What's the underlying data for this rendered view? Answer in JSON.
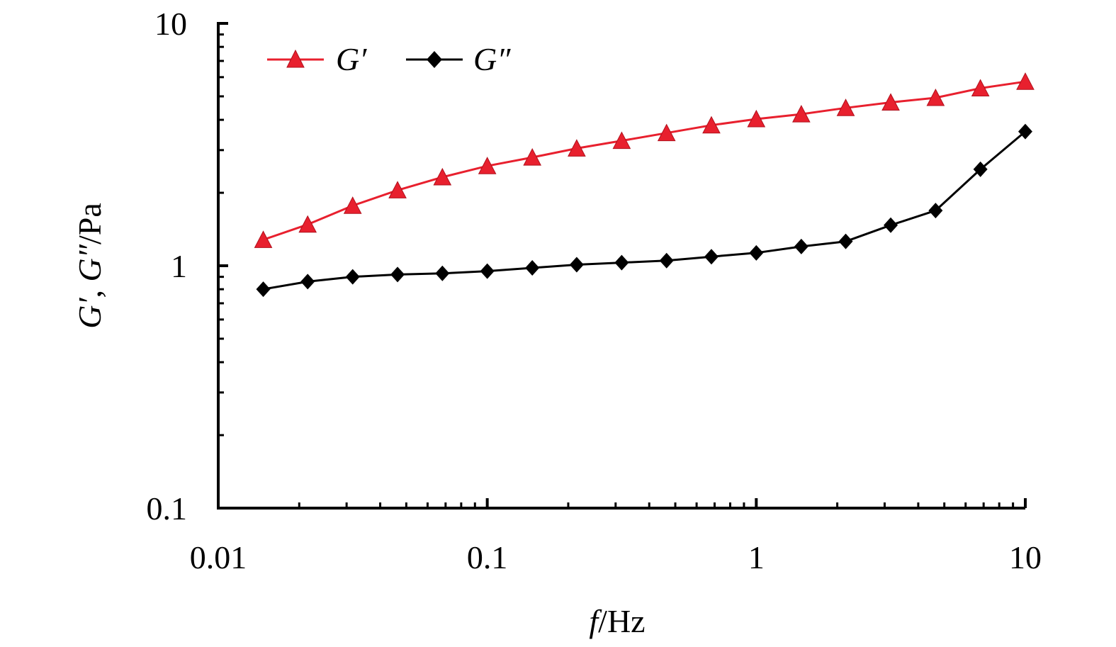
{
  "chart_data": {
    "type": "line",
    "xlabel_parts": {
      "var": "f",
      "unit": "/Hz"
    },
    "ylabel_parts": {
      "g1": "G′",
      "sep": ", ",
      "g2": "G″",
      "unit": "/Pa"
    },
    "x_scale": "log",
    "y_scale": "log",
    "xlim": [
      0.01,
      10
    ],
    "ylim": [
      0.1,
      10
    ],
    "x_ticks": [
      "0.01",
      "0.1",
      "1",
      "10"
    ],
    "y_ticks": [
      "0.1",
      "1",
      "10"
    ],
    "grid": false,
    "legend_position": "top-left",
    "x": [
      0.0147,
      0.0215,
      0.0316,
      0.0464,
      0.0681,
      0.1,
      0.147,
      0.215,
      0.316,
      0.464,
      0.681,
      1.0,
      1.47,
      2.15,
      3.16,
      4.64,
      6.81,
      10.0
    ],
    "series": [
      {
        "name": "G′",
        "color": "#e8202e",
        "marker": "triangle",
        "values": [
          1.28,
          1.48,
          1.77,
          2.05,
          2.32,
          2.58,
          2.8,
          3.05,
          3.28,
          3.53,
          3.8,
          4.03,
          4.22,
          4.48,
          4.72,
          4.93,
          5.4,
          5.75
        ]
      },
      {
        "name": "G″",
        "color": "#000000",
        "marker": "diamond",
        "values": [
          0.8,
          0.86,
          0.9,
          0.92,
          0.93,
          0.95,
          0.98,
          1.01,
          1.03,
          1.05,
          1.09,
          1.13,
          1.2,
          1.26,
          1.47,
          1.69,
          2.5,
          3.58
        ]
      }
    ]
  }
}
